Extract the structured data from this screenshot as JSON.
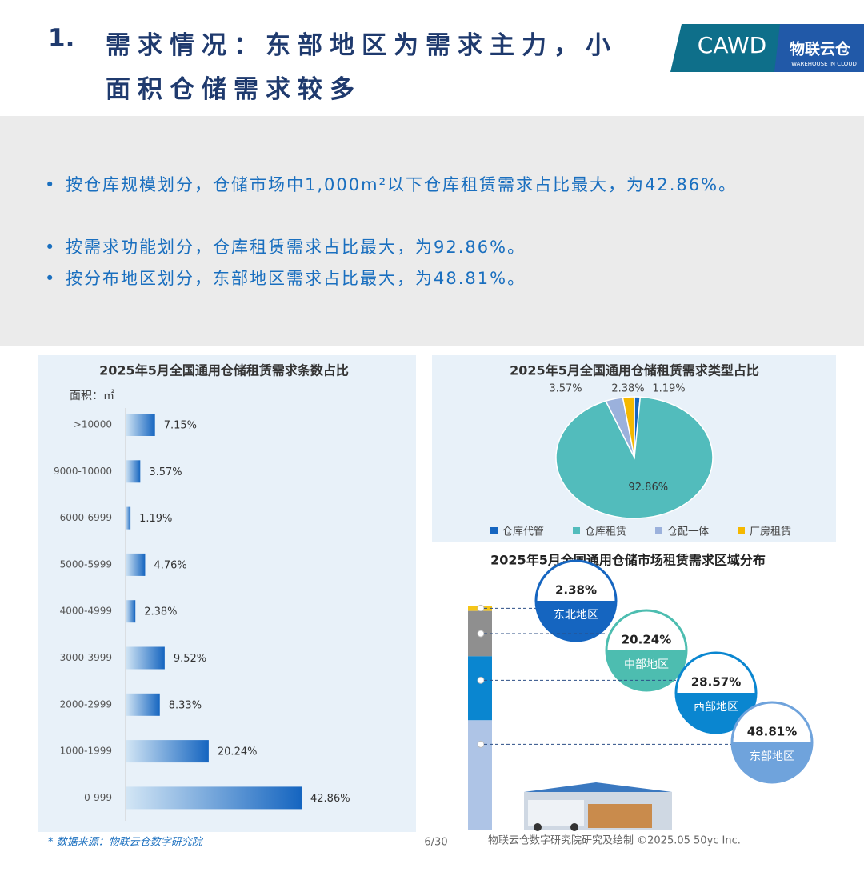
{
  "header": {
    "number": "1.",
    "title": "需求情况：东部地区为需求主力，小面积仓储需求较多",
    "logo_main": "CAWD",
    "logo_brand": "物联云仓",
    "logo_sub": "WAREHOUSE IN CLOUD"
  },
  "bullets": [
    "按仓库规模划分，仓储市场中1,000m²以下仓库租赁需求占比最大，为42.86%。",
    "按需求功能划分，仓库租赁需求占比最大，为92.86%。",
    "按分布地区划分，东部地区需求占比最大，为48.81%。"
  ],
  "chart_data": [
    {
      "type": "bar",
      "title": "2025年5月全国通用仓储租赁需求条数占比",
      "y_axis_label": "面积：㎡",
      "color": "#1565c0",
      "categories": [
        ">10000",
        "9000-10000",
        "6000-6999",
        "5000-5999",
        "4000-4999",
        "3000-3999",
        "2000-2999",
        "1000-1999",
        "0-999"
      ],
      "values": [
        7.15,
        3.57,
        1.19,
        4.76,
        2.38,
        9.52,
        8.33,
        20.24,
        42.86
      ],
      "value_labels": [
        "7.15%",
        "3.57%",
        "1.19%",
        "4.76%",
        "2.38%",
        "9.52%",
        "8.33%",
        "20.24%",
        "42.86%"
      ]
    },
    {
      "type": "pie",
      "title": "2025年5月全国通用仓储租赁需求类型占比",
      "categories": [
        "仓库代管",
        "仓库租赁",
        "仓配一体",
        "厂房租赁"
      ],
      "values": [
        1.19,
        92.86,
        3.57,
        2.38
      ],
      "value_labels": [
        "1.19%",
        "92.86%",
        "3.57%",
        "2.38%"
      ],
      "colors": [
        "#1565c0",
        "#52bcbc",
        "#9bb1dc",
        "#f5b800"
      ]
    },
    {
      "type": "stacked-bar",
      "title": "2025年5月全国通用仓储市场租赁需求区域分布",
      "categories": [
        "东北地区",
        "中部地区",
        "西部地区",
        "东部地区"
      ],
      "values": [
        2.38,
        20.24,
        28.57,
        48.81
      ],
      "value_labels": [
        "2.38%",
        "20.24%",
        "28.57%",
        "48.81%"
      ],
      "colors": [
        "#f5c518",
        "#8f8f8f",
        "#0a86d0",
        "#aec4e6"
      ],
      "badge_colors": [
        "#1565c0",
        "#4dbdb0",
        "#0a86d0",
        "#6fa3dc"
      ]
    }
  ],
  "footer": {
    "source": "* 数据来源：物联云仓数字研究院",
    "page": "6/30",
    "credit": "物联云仓数字研究院研究及绘制   ©2025.05 50yc Inc."
  }
}
